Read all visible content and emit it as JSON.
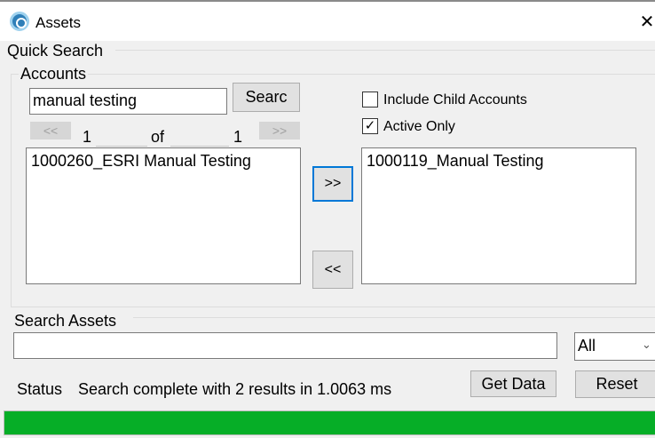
{
  "window": {
    "title": "Assets",
    "close_icon": "close-icon"
  },
  "quick_search": {
    "label": "Quick Search"
  },
  "accounts": {
    "label": "Accounts",
    "search_value": "manual testing",
    "search_button": "Searc",
    "prev_page": "<<",
    "next_page": ">>",
    "current_page": "1",
    "of_label": "of",
    "total_pages": "1",
    "available": [
      "1000260_ESRI Manual Testing"
    ],
    "selected": [
      "1000119_Manual Testing"
    ],
    "add_button": ">>",
    "remove_button": "<<",
    "include_child": {
      "label": "Include Child Accounts",
      "checked": false
    },
    "active_only": {
      "label": "Active Only",
      "checked": true,
      "mark": "✓"
    }
  },
  "search_assets": {
    "label": "Search Assets",
    "value": "",
    "filter": "All"
  },
  "status": {
    "label": "Status",
    "text": "Search complete with 2 results in 1.0063 ms"
  },
  "buttons": {
    "get_data": "Get Data",
    "reset": "Reset"
  },
  "progress": {
    "percent": 100,
    "color": "#06ae27"
  }
}
